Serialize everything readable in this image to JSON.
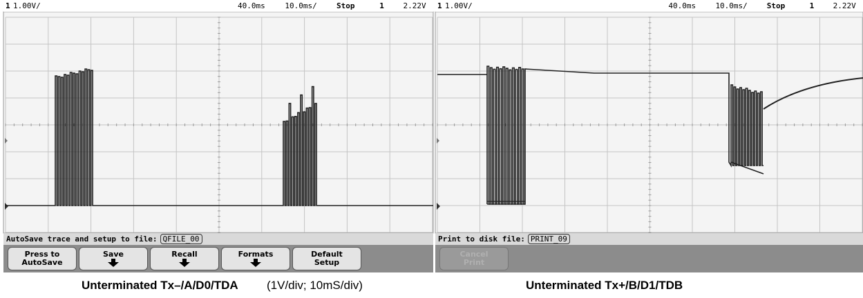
{
  "left_screen": {
    "status": {
      "channel": "1",
      "scale": "1.00V/",
      "delay": "40.0ms",
      "timebase": "10.0ms/",
      "mode": "Stop",
      "trigger_channel": "1",
      "trigger_level": "2.22V"
    },
    "message": "AutoSave trace and setup to file:",
    "filename": "QFILE_00",
    "softkeys": [
      [
        "Press to",
        "AutoSave"
      ],
      [
        "Save"
      ],
      [
        "Recall"
      ],
      [
        "Formats"
      ],
      [
        "Default",
        "Setup"
      ]
    ]
  },
  "right_screen": {
    "status": {
      "channel": "1",
      "scale": "1.00V/",
      "delay": "40.0ms",
      "timebase": "10.0ms/",
      "mode": "Stop",
      "trigger_channel": "1",
      "trigger_level": "2.22V"
    },
    "message": "Print to disk file:",
    "filename": "PRINT_09",
    "softkeys": [
      [
        "Cancel",
        "Print"
      ]
    ]
  },
  "captions": {
    "left": "Unterminated Tx–/A/D0/TDA",
    "middle": "(1V/div; 10mS/div)",
    "right": "Unterminated Tx+/B/D1/TDB"
  }
}
